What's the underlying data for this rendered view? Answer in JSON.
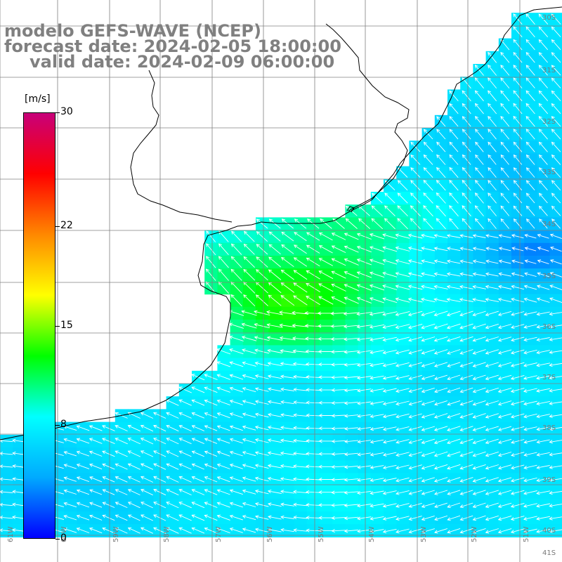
{
  "title": {
    "model": "modelo GEFS-WAVE (NCEP)",
    "forecast": "forecast date: 2024-02-05 18:00:00",
    "valid": "valid date: 2024-02-09 06:00:00"
  },
  "colorbar": {
    "units": "[m/s]",
    "ticks": [
      "30",
      "22",
      "15",
      "8",
      "0"
    ],
    "tick_values": [
      30,
      22,
      15,
      8,
      0
    ],
    "range": [
      0,
      30
    ],
    "colors": [
      "#0000ff",
      "#00aaff",
      "#00ffff",
      "#00ff00",
      "#ffff00",
      "#ff8800",
      "#ff0000",
      "#c8007a"
    ]
  },
  "map": {
    "lat_labels": [
      "30S",
      "31S",
      "32S",
      "33S",
      "34S",
      "35S",
      "36S",
      "37S",
      "38S",
      "39S",
      "40S",
      "41S"
    ],
    "lon_labels": [
      "61W",
      "60W",
      "59W",
      "58W",
      "57W",
      "56W",
      "55W",
      "54W",
      "53W",
      "52W",
      "51W"
    ],
    "wind_arrows": "white",
    "land_color": "#ffffff",
    "coastline_color": "#000000",
    "grid_color": "#808080"
  }
}
